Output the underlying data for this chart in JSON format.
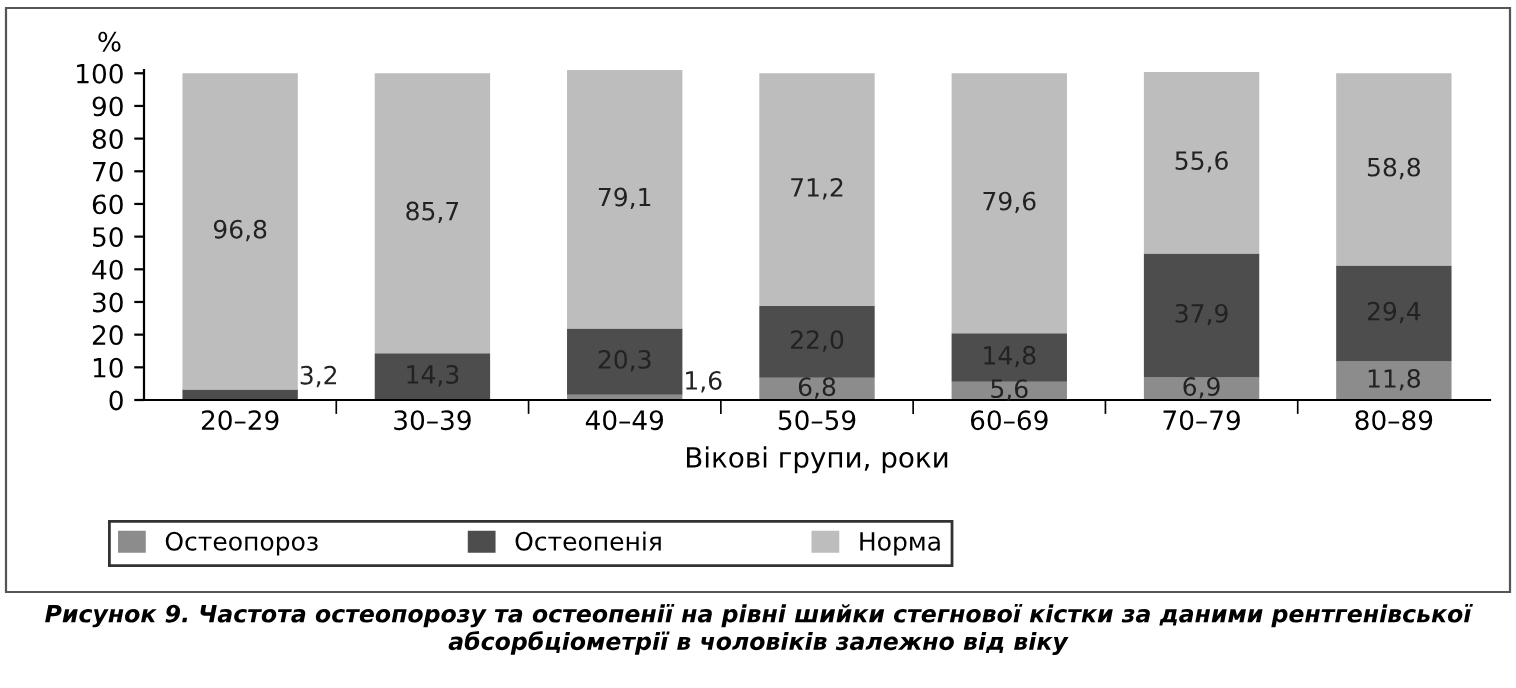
{
  "chart_data": {
    "type": "bar",
    "stacked": true,
    "ylabel": "%",
    "xlabel": "Вікові групи, роки",
    "categories": [
      "20–29",
      "30–39",
      "40–49",
      "50–59",
      "60–69",
      "70–79",
      "80–89"
    ],
    "series": [
      {
        "name": "Остеопороз",
        "color": "#8c8c8c",
        "values": [
          0,
          0,
          1.6,
          6.8,
          5.6,
          6.9,
          11.8
        ],
        "value_labels": [
          null,
          null,
          "1,6",
          "6,8",
          "5,6",
          "6,9",
          "11,8"
        ]
      },
      {
        "name": "Остеопенія",
        "color": "#4d4d4d",
        "values": [
          3.2,
          14.3,
          20.3,
          22.0,
          14.8,
          37.9,
          29.4
        ],
        "value_labels": [
          "3,2",
          "14,3",
          "20,3",
          "22,0",
          "14,8",
          "37,9",
          "29,4"
        ]
      },
      {
        "name": "Норма",
        "color": "#bdbdbd",
        "values": [
          96.8,
          85.7,
          79.1,
          71.2,
          79.6,
          55.6,
          58.8
        ],
        "value_labels": [
          "96,8",
          "85,7",
          "79,1",
          "71,2",
          "79,6",
          "55,6",
          "58,8"
        ]
      }
    ],
    "ylim": [
      0,
      101
    ],
    "yticks": [
      0,
      10,
      20,
      30,
      40,
      50,
      60,
      70,
      80,
      90,
      100
    ],
    "grid": false,
    "legend": "bottom",
    "annotations": [
      "Рисунок 9. Частота остеопорозу та остеопенії на рівні шийки стегнової кістки за даними рентгенівської абсорбціометрії в чоловіків залежно від віку"
    ]
  }
}
